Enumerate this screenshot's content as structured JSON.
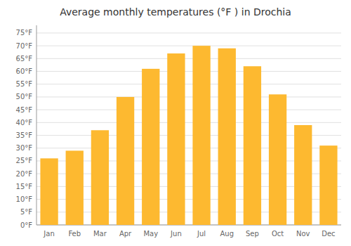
{
  "chart_data": {
    "type": "bar",
    "title": "Average monthly temperatures (°F ) in Drochia",
    "categories": [
      "Jan",
      "Feb",
      "Mar",
      "Apr",
      "May",
      "Jun",
      "Jul",
      "Aug",
      "Sep",
      "Oct",
      "Nov",
      "Dec"
    ],
    "values": [
      26,
      29,
      37,
      50,
      61,
      67,
      70,
      69,
      62,
      51,
      39,
      31
    ],
    "color": "#FDB930",
    "ylim": [
      0,
      78
    ],
    "yticks": [
      {
        "value": 0,
        "label": "0°F"
      },
      {
        "value": 5,
        "label": "5°F"
      },
      {
        "value": 10,
        "label": "10°F"
      },
      {
        "value": 15,
        "label": "15°F"
      },
      {
        "value": 20,
        "label": "20°F"
      },
      {
        "value": 25,
        "label": "25°F"
      },
      {
        "value": 30,
        "label": "30°F"
      },
      {
        "value": 35,
        "label": "35°F"
      },
      {
        "value": 40,
        "label": "40°F"
      },
      {
        "value": 45,
        "label": "45°F"
      },
      {
        "value": 50,
        "label": "50°F"
      },
      {
        "value": 55,
        "label": "55°F"
      },
      {
        "value": 60,
        "label": "60°F"
      },
      {
        "value": 65,
        "label": "65°F"
      },
      {
        "value": 70,
        "label": "70°F"
      },
      {
        "value": 75,
        "label": "75°F"
      }
    ],
    "grid": true
  }
}
